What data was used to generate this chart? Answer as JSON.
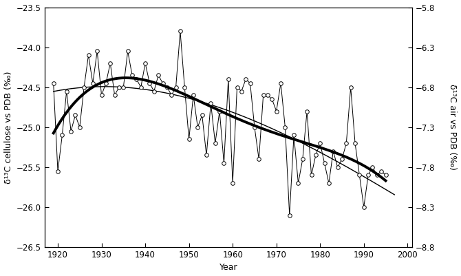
{
  "years": [
    1919,
    1920,
    1921,
    1922,
    1923,
    1924,
    1925,
    1926,
    1927,
    1928,
    1929,
    1930,
    1931,
    1932,
    1933,
    1934,
    1935,
    1936,
    1937,
    1938,
    1939,
    1940,
    1941,
    1942,
    1943,
    1944,
    1945,
    1946,
    1947,
    1948,
    1949,
    1950,
    1951,
    1952,
    1953,
    1954,
    1955,
    1956,
    1957,
    1958,
    1959,
    1960,
    1961,
    1962,
    1963,
    1964,
    1965,
    1966,
    1967,
    1968,
    1969,
    1970,
    1971,
    1972,
    1973,
    1974,
    1975,
    1976,
    1977,
    1978,
    1979,
    1980,
    1981,
    1982,
    1983,
    1984,
    1985,
    1986,
    1987,
    1988,
    1989,
    1990,
    1991,
    1992,
    1993,
    1994,
    1995
  ],
  "cellulose_values": [
    -24.45,
    -25.55,
    -25.1,
    -24.55,
    -25.05,
    -24.85,
    -25.0,
    -24.5,
    -24.1,
    -24.45,
    -24.05,
    -24.6,
    -24.45,
    -24.2,
    -24.6,
    -24.5,
    -24.5,
    -24.05,
    -24.35,
    -24.4,
    -24.5,
    -24.2,
    -24.45,
    -24.55,
    -24.35,
    -24.45,
    -24.5,
    -24.6,
    -24.5,
    -23.8,
    -24.5,
    -25.15,
    -24.6,
    -25.0,
    -24.85,
    -25.35,
    -24.7,
    -25.2,
    -24.8,
    -25.45,
    -24.4,
    -25.7,
    -24.5,
    -24.55,
    -24.4,
    -24.45,
    -25.0,
    -25.4,
    -24.6,
    -24.6,
    -24.65,
    -24.8,
    -24.45,
    -25.0,
    -26.1,
    -25.1,
    -25.7,
    -25.4,
    -24.8,
    -25.6,
    -25.35,
    -25.2,
    -25.45,
    -25.7,
    -25.3,
    -25.5,
    -25.4,
    -25.2,
    -24.5,
    -25.2,
    -25.6,
    -26.0,
    -25.6,
    -25.5,
    -25.6,
    -25.55,
    -25.6
  ],
  "ylim_left": [
    -26.5,
    -23.5
  ],
  "ylim_right": [
    -8.8,
    -5.8
  ],
  "xlim": [
    1917,
    2001
  ],
  "xticks": [
    1920,
    1930,
    1940,
    1950,
    1960,
    1970,
    1980,
    1990,
    2000
  ],
  "yticks_left": [
    -26.5,
    -26.0,
    -25.5,
    -25.0,
    -24.5,
    -24.0,
    -23.5
  ],
  "yticks_right": [
    -8.8,
    -8.3,
    -7.8,
    -7.3,
    -6.8,
    -6.3,
    -5.8
  ],
  "xlabel": "Year",
  "ylabel_left": "δ¹³C cellulose vs PDB (‰)",
  "ylabel_right": "δ¹³C air vs PDB (‰)",
  "poly_degree": 4,
  "line_color": "#000000",
  "thick_line_color": "#000000",
  "circle_facecolor": "#ffffff",
  "circle_edgecolor": "#000000",
  "bg_color": "#ffffff",
  "atm_x": [
    1919,
    1925,
    1935,
    1945,
    1955,
    1965,
    1975,
    1985,
    1995
  ],
  "atm_y_right": [
    -6.82,
    -6.83,
    -6.85,
    -6.87,
    -6.97,
    -7.18,
    -7.52,
    -7.8,
    -8.05
  ]
}
